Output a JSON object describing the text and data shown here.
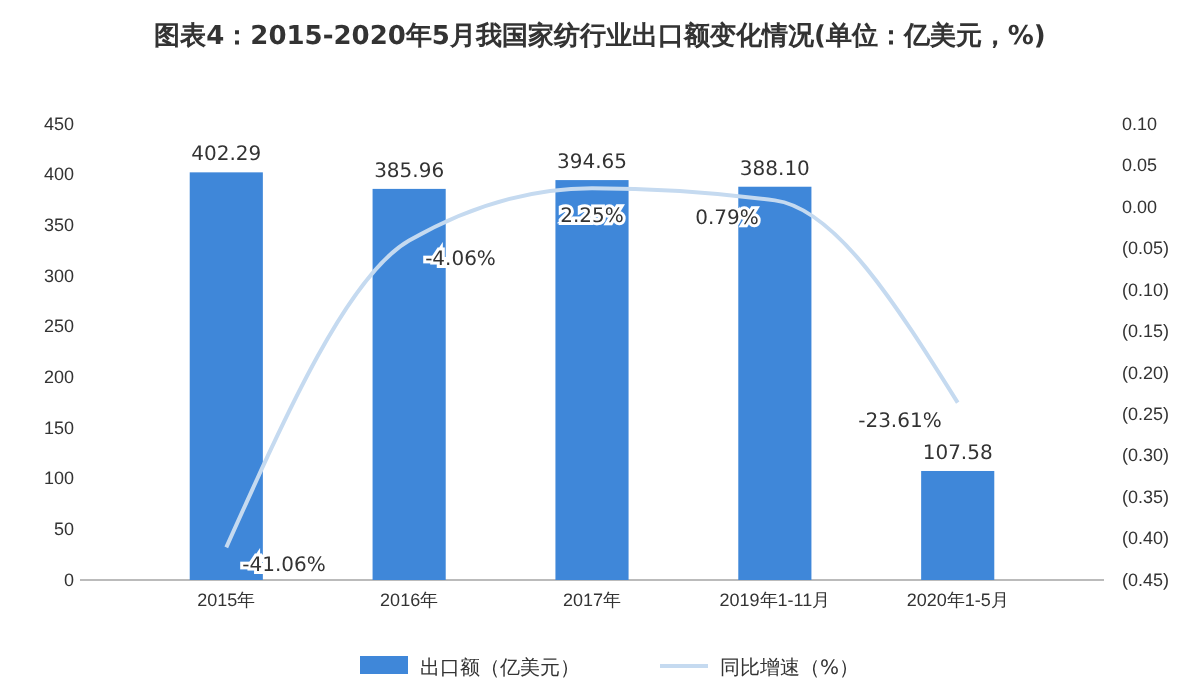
{
  "chart_data": {
    "type": "bar",
    "title": "图表4：2015-2020年5月我国家纺行业出口额变化情况(单位：亿美元，%)",
    "categories": [
      "2015年",
      "2016年",
      "2017年",
      "2019年1-11月",
      "2020年1-5月"
    ],
    "series": [
      {
        "name": "出口额（亿美元）",
        "color": "#3f87d9",
        "values": [
          402.29,
          385.96,
          394.65,
          388.1,
          107.58
        ],
        "value_labels": [
          "402.29",
          "385.96",
          "394.65",
          "388.10",
          "107.58"
        ]
      },
      {
        "name": "同比增速（%）",
        "type": "line",
        "axis": "y2",
        "color": "#c5daf0",
        "values": [
          -0.4106,
          -0.0406,
          0.0225,
          0.0079,
          -0.2361
        ],
        "value_labels": [
          "-41.06%",
          "-4.06%",
          "2.25%",
          "0.79%",
          "-23.61%"
        ]
      }
    ],
    "ylim": [
      0,
      450
    ],
    "yticks": [
      0,
      50,
      100,
      150,
      200,
      250,
      300,
      350,
      400,
      450
    ],
    "y2lim": [
      -0.45,
      0.1
    ],
    "y2ticks": [
      {
        "value": 0.1,
        "label": "0.10"
      },
      {
        "value": 0.05,
        "label": "0.05"
      },
      {
        "value": 0,
        "label": "0.00"
      },
      {
        "value": -0.05,
        "label": "(0.05)"
      },
      {
        "value": -0.1,
        "label": "(0.10)"
      },
      {
        "value": -0.15,
        "label": "(0.15)"
      },
      {
        "value": -0.2,
        "label": "(0.20)"
      },
      {
        "value": -0.25,
        "label": "(0.25)"
      },
      {
        "value": -0.3,
        "label": "(0.30)"
      },
      {
        "value": -0.35,
        "label": "(0.35)"
      },
      {
        "value": -0.4,
        "label": "(0.40)"
      },
      {
        "value": -0.45,
        "label": "(0.45)"
      }
    ],
    "legend": "bottom",
    "marker": "none",
    "line_style": "solid"
  }
}
